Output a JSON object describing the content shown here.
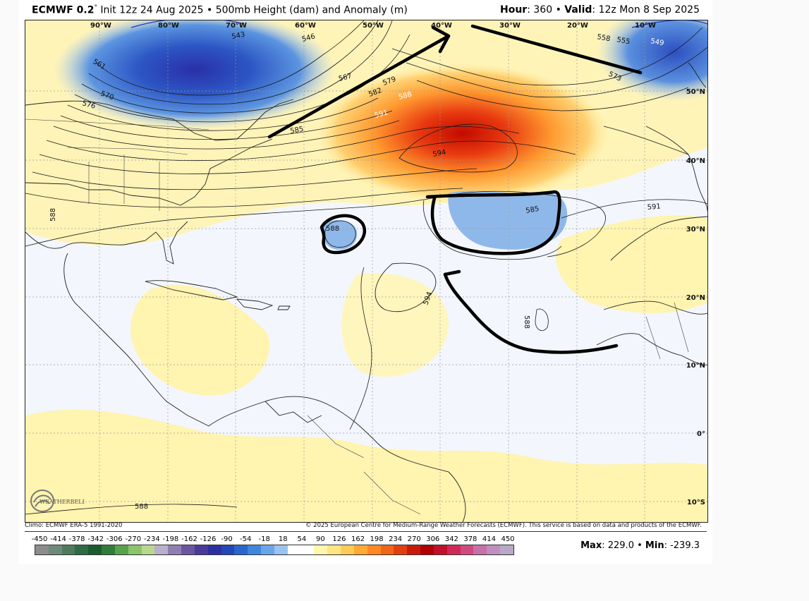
{
  "header": {
    "model": "ECMWF 0.2",
    "model_degree": "°",
    "init": "Init 12z 24 Aug 2025",
    "bullet": "•",
    "product": "500mb Height (dam) and Anomaly (m)",
    "hour_label": "Hour",
    "hour_value": ": 360",
    "valid_label": "Valid",
    "valid_value": ": 12z Mon 8 Sep 2025"
  },
  "map": {
    "lon_labels": [
      "90°W",
      "80°W",
      "70°W",
      "60°W",
      "50°W",
      "40°W",
      "30°W",
      "20°W",
      "10°W"
    ],
    "lat_labels": [
      "50°N",
      "40°N",
      "30°N",
      "20°N",
      "10°N",
      "0°",
      "10°S"
    ],
    "contour_labels": [
      "543",
      "546",
      "549",
      "555",
      "558",
      "561",
      "567",
      "570",
      "573",
      "576",
      "579",
      "582",
      "585",
      "588",
      "591",
      "594",
      "585",
      "588",
      "591",
      "588",
      "588",
      "585",
      "588"
    ],
    "logo_text": "WEATHERBELL"
  },
  "footer": {
    "climo": "Climo: ECMWF ERA-5 1991-2020",
    "copyright": "© 2025 European Centre for Medium-Range Weather Forecasts (ECMWF). This service is based on data and products of the ECMWF."
  },
  "scale": {
    "labels": [
      "-450",
      "-414",
      "-378",
      "-342",
      "-306",
      "-270",
      "-234",
      "-198",
      "-162",
      "-126",
      "-90",
      "-54",
      "-18",
      "18",
      "54",
      "90",
      "126",
      "162",
      "198",
      "234",
      "270",
      "306",
      "342",
      "378",
      "414",
      "450"
    ],
    "colors": [
      "#8c8c8c",
      "#6e8a7a",
      "#4f7a5e",
      "#2f6b45",
      "#1a5c30",
      "#2e7d3a",
      "#58a24a",
      "#8cc46a",
      "#b8d890",
      "#b9b0c9",
      "#8e7fb0",
      "#6a56a0",
      "#4a3b99",
      "#2d2fa0",
      "#2346b8",
      "#2a66cc",
      "#3f86dd",
      "#6aa6e6",
      "#9ac3ee",
      "#ffffff",
      "#ffffff",
      "#fff6b0",
      "#ffe680",
      "#ffcc55",
      "#ffaa33",
      "#ff8822",
      "#f26418",
      "#e04010",
      "#c91a08",
      "#b00000",
      "#c0102a",
      "#d02858",
      "#d04a80",
      "#c870a8",
      "#c08ec0",
      "#b9a8c8"
    ],
    "max_label": "Max",
    "max_value": ": 229.0",
    "sep": "•",
    "min_label": "Min",
    "min_value": ": -239.3"
  }
}
